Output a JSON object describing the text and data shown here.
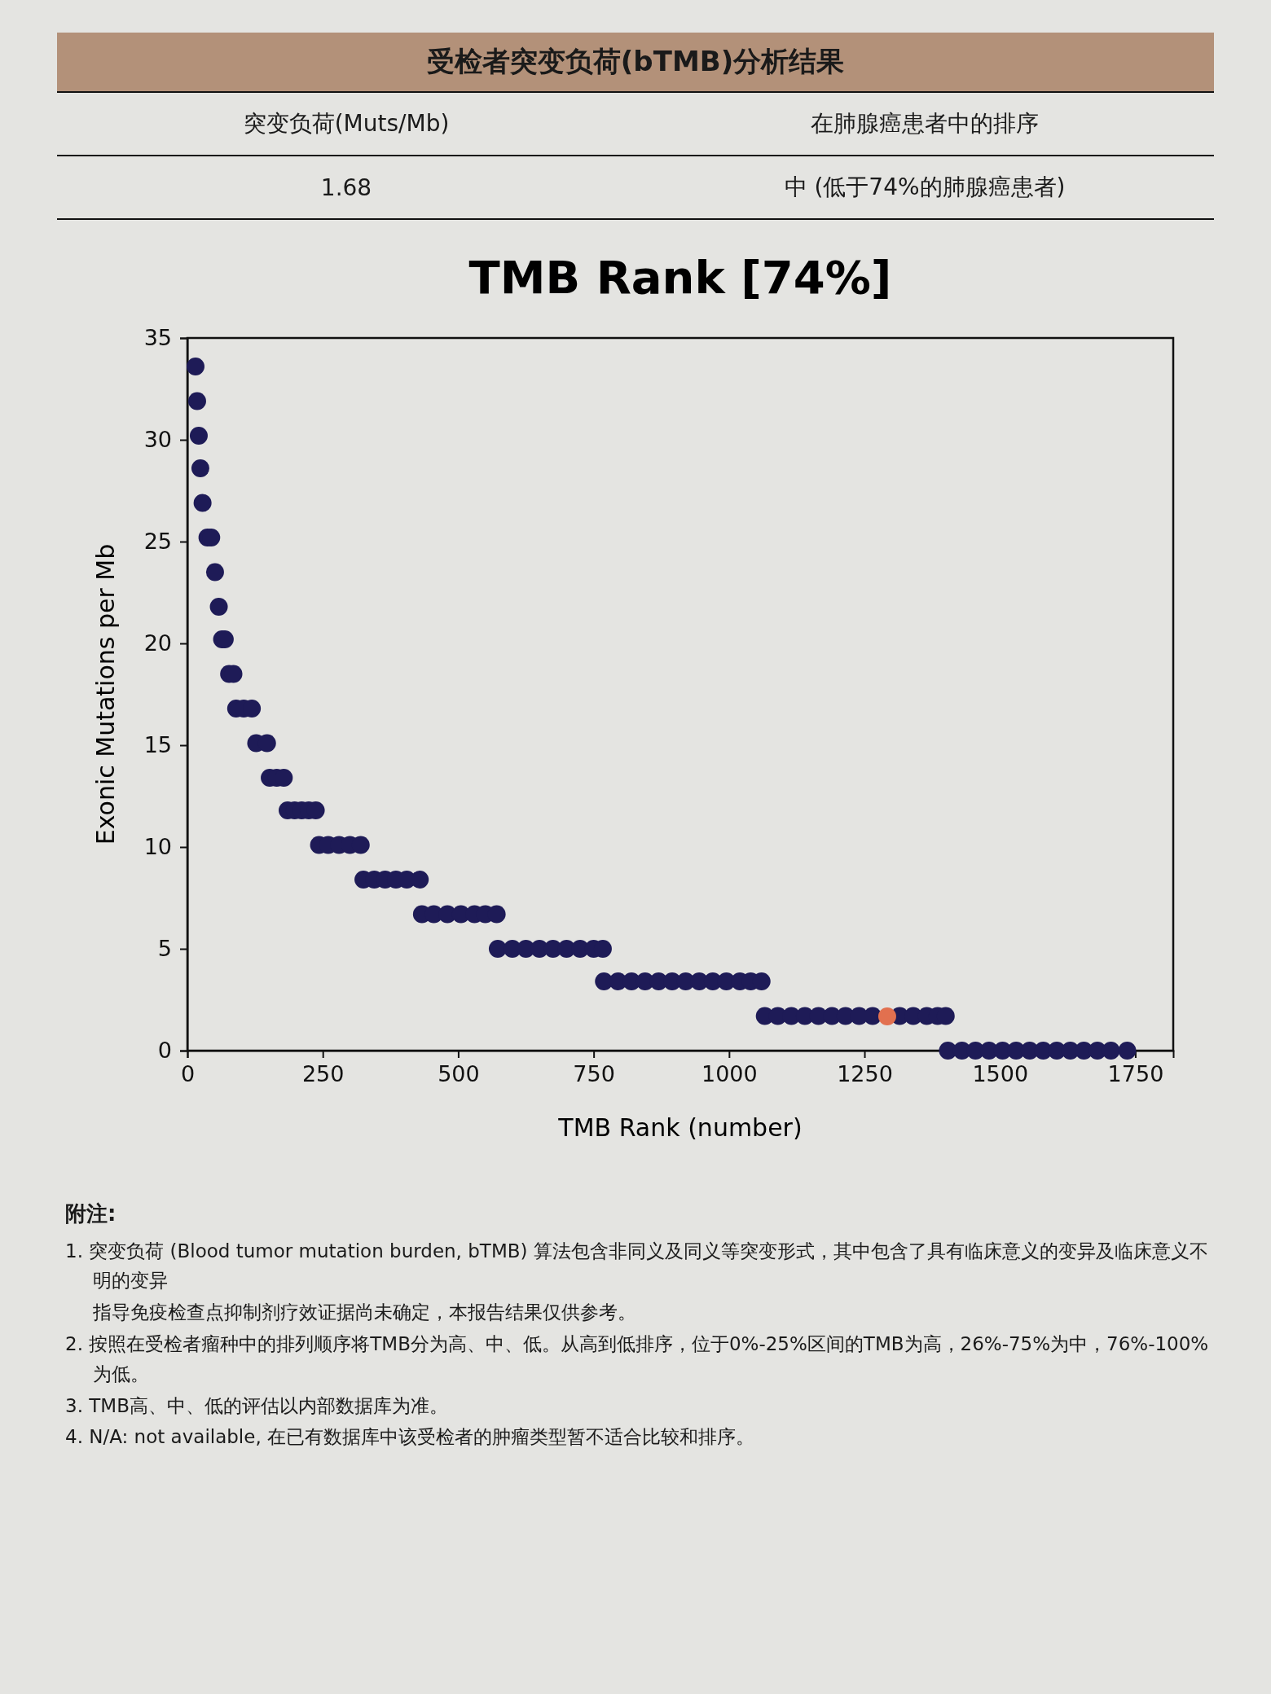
{
  "chart_data": {
    "type": "scatter",
    "title": "TMB Rank [74%]",
    "xlabel": "TMB Rank (number)",
    "ylabel": "Exonic Mutations per Mb",
    "xlim": [
      0,
      1820
    ],
    "xticks": [
      0,
      250,
      500,
      750,
      1000,
      1250,
      1500,
      1750
    ],
    "ylim": [
      0,
      35
    ],
    "yticks": [
      0,
      5,
      10,
      15,
      20,
      25,
      30,
      35
    ],
    "marker": "circle",
    "series": [
      {
        "color": "#1e1b57",
        "x": [
          15,
          18,
          21,
          24,
          28,
          37,
          44,
          51,
          58,
          64,
          69,
          77,
          85,
          90,
          104,
          119,
          127,
          147,
          152,
          165,
          178,
          185,
          198,
          211,
          224,
          237,
          243,
          260,
          280,
          300,
          320,
          325,
          345,
          365,
          385,
          405,
          429,
          433,
          455,
          480,
          505,
          530,
          550,
          571,
          573,
          600,
          625,
          650,
          675,
          700,
          725,
          750,
          767,
          769,
          795,
          820,
          845,
          870,
          895,
          920,
          945,
          970,
          995,
          1020,
          1040,
          1060,
          1066,
          1090,
          1115,
          1140,
          1165,
          1190,
          1215,
          1240,
          1265,
          1315,
          1340,
          1365,
          1385,
          1400,
          1404,
          1430,
          1455,
          1480,
          1505,
          1530,
          1555,
          1580,
          1605,
          1630,
          1655,
          1680,
          1705,
          1735
        ],
        "values": [
          33.6,
          31.9,
          30.2,
          28.6,
          26.9,
          25.2,
          25.2,
          23.5,
          21.8,
          20.2,
          20.2,
          18.5,
          18.5,
          16.8,
          16.8,
          16.8,
          15.1,
          15.1,
          13.4,
          13.4,
          13.4,
          11.8,
          11.8,
          11.8,
          11.8,
          11.8,
          10.1,
          10.1,
          10.1,
          10.1,
          10.1,
          8.4,
          8.4,
          8.4,
          8.4,
          8.4,
          8.4,
          6.7,
          6.7,
          6.7,
          6.7,
          6.7,
          6.7,
          6.7,
          5.0,
          5.0,
          5.0,
          5.0,
          5.0,
          5.0,
          5.0,
          5.0,
          5.0,
          3.4,
          3.4,
          3.4,
          3.4,
          3.4,
          3.4,
          3.4,
          3.4,
          3.4,
          3.4,
          3.4,
          3.4,
          3.4,
          1.7,
          1.7,
          1.7,
          1.7,
          1.7,
          1.7,
          1.7,
          1.7,
          1.7,
          1.7,
          1.7,
          1.7,
          1.7,
          1.7,
          0,
          0,
          0,
          0,
          0,
          0,
          0,
          0,
          0,
          0,
          0,
          0,
          0,
          0
        ]
      },
      {
        "color": "#e2704f",
        "x": [
          1292
        ],
        "values": [
          1.68
        ]
      }
    ],
    "annotations": [
      "受检者突变负荷(bTMB)分析结果",
      "突变负荷(Muts/Mb)",
      "在肺腺癌患者中的排序",
      "1.68",
      "中 (低于74%的肺腺癌患者)",
      "附注:",
      "1. 突变负荷 (Blood tumor mutation burden, bTMB) 算法包含非同义及同义等突变形式，其中包含了具有临床意义的变异及临床意义不明的变异",
      "指导免疫检查点抑制剂疗效证据尚未确定，本报告结果仅供参考。",
      "2. 按照在受检者瘤种中的排列顺序将TMB分为高、中、低。从高到低排序，位于0%-25%区间的TMB为高，26%-75%为中，76%-100%为低。",
      "3. TMB高、中、低的评估以内部数据库为准。",
      "4. N/A: not available, 在已有数据库中该受检者的肿瘤类型暂不适合比较和排序。"
    ]
  }
}
